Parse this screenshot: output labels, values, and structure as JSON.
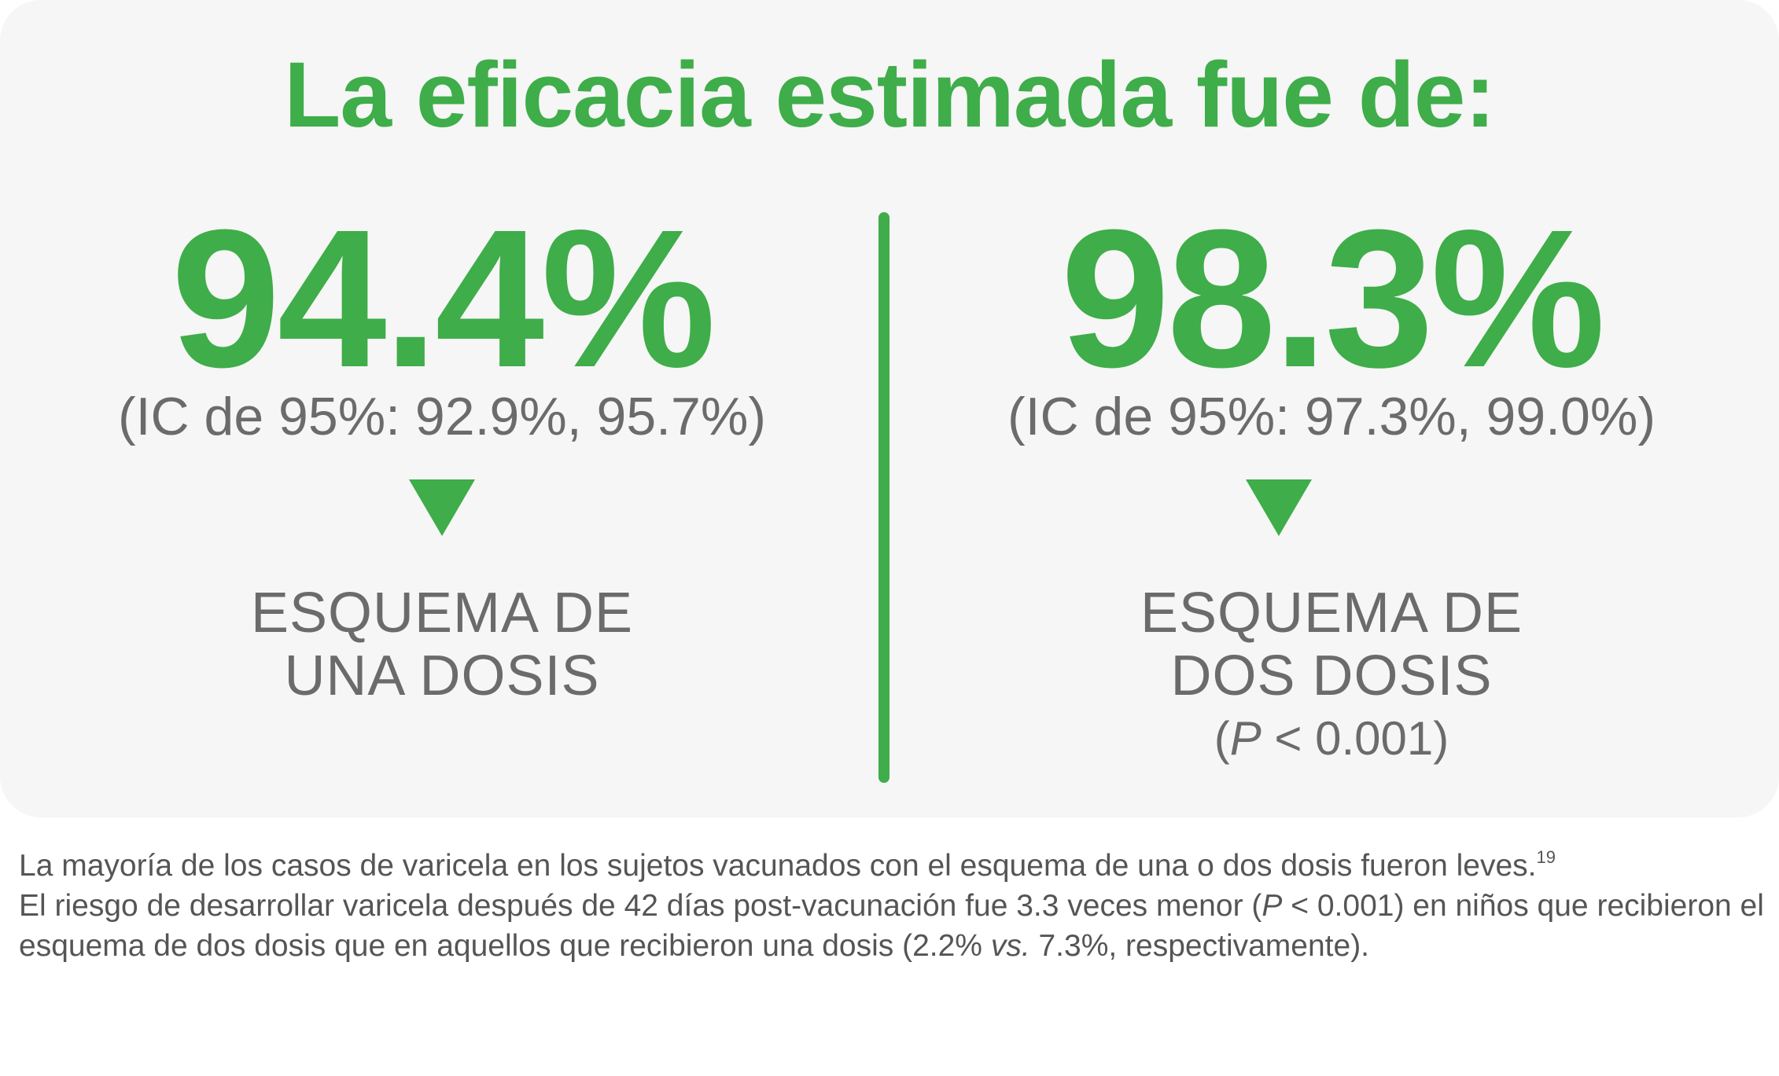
{
  "title": "La eficacia estimada fue de:",
  "left": {
    "value": "94.4%",
    "ci": "(IC de 95%: 92.9%, 95.7%)",
    "scheme_line1": "ESQUEMA DE",
    "scheme_line2": "UNA DOSIS"
  },
  "right": {
    "value": "98.3%",
    "ci": "(IC de 95%: 97.3%, 99.0%)",
    "scheme_line1": "ESQUEMA DE",
    "scheme_line2": "DOS DOSIS",
    "p_open": "(",
    "p_letter": "P",
    "p_rest": " < 0.001)"
  },
  "notes": {
    "para1": "La mayoría de los casos de varicela en los sujetos vacunados con el esquema de una o dos dosis fueron leves.",
    "para1_ref": "19",
    "para2_a": "El riesgo de desarrollar varicela después de 42 días post-vacunación fue 3.3 veces menor (",
    "para2_p": "P",
    "para2_b": " < 0.001) en niños que recibieron el esquema de dos dosis que en aquellos que recibieron una dosis (2.2% ",
    "para2_vs": "vs.",
    "para2_c": " 7.3%, respectivamente)."
  },
  "colors": {
    "accent_green": "#3fad49",
    "text_gray": "#6b6b6b",
    "card_bg": "#f5f6f5"
  }
}
